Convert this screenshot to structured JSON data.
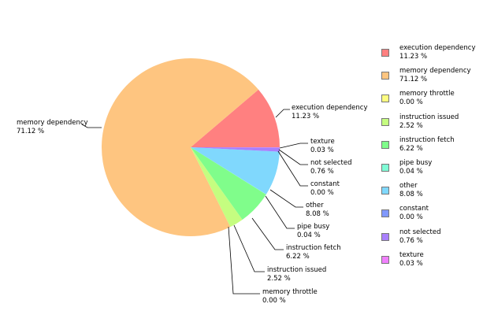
{
  "chart_data": {
    "type": "pie",
    "title": "",
    "legend_position": "right",
    "slices": [
      {
        "name": "execution dependency",
        "value": 11.23,
        "value_label": "11.23 %",
        "color": "#ff8080"
      },
      {
        "name": "memory dependency",
        "value": 71.12,
        "value_label": "71.12 %",
        "color": "#fec580"
      },
      {
        "name": "memory throttle",
        "value": 0.0,
        "value_label": "0.00 %",
        "color": "#fdfd80"
      },
      {
        "name": "instruction issued",
        "value": 2.52,
        "value_label": "2.52 %",
        "color": "#c5fd80"
      },
      {
        "name": "instruction fetch",
        "value": 6.22,
        "value_label": "6.22 %",
        "color": "#80fd8b"
      },
      {
        "name": "pipe busy",
        "value": 0.04,
        "value_label": "0.04 %",
        "color": "#80fdd6"
      },
      {
        "name": "other",
        "value": 8.08,
        "value_label": "8.08 %",
        "color": "#80d8fd"
      },
      {
        "name": "constant",
        "value": 0.0,
        "value_label": "0.00 %",
        "color": "#8098fd"
      },
      {
        "name": "not selected",
        "value": 0.76,
        "value_label": "0.76 %",
        "color": "#a980fd"
      },
      {
        "name": "texture",
        "value": 0.03,
        "value_label": "0.03 %",
        "color": "#f080fd"
      }
    ]
  }
}
